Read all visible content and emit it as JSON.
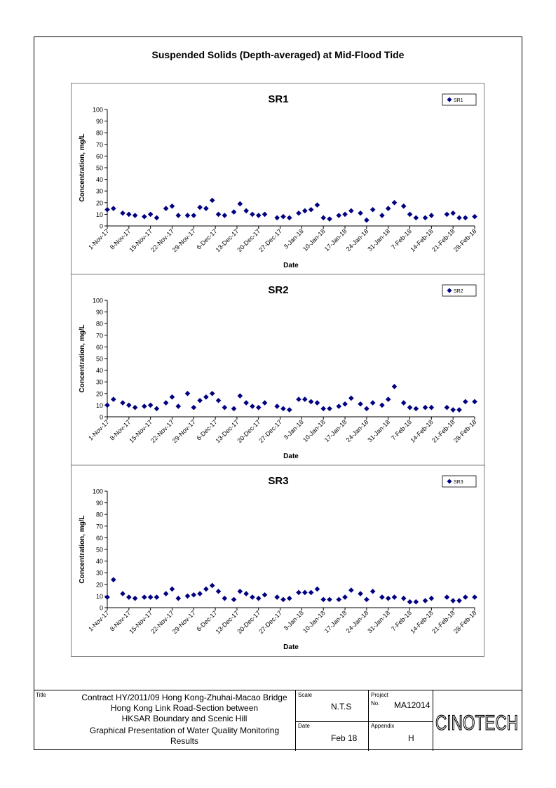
{
  "page": {
    "title": "Suspended Solids (Depth-averaged) at Mid-Flood Tide"
  },
  "chart_common": {
    "x_tick_labels": [
      "1-Nov-17",
      "8-Nov-17",
      "15-Nov-17",
      "22-Nov-17",
      "29-Nov-17",
      "6-Dec-17",
      "13-Dec-17",
      "20-Dec-17",
      "27-Dec-17",
      "3-Jan-18",
      "10-Jan-18",
      "17-Jan-18",
      "24-Jan-18",
      "31-Jan-18",
      "7-Feb-18",
      "14-Feb-18",
      "21-Feb-18",
      "28-Feb-18"
    ],
    "y_tick_labels": [
      "0",
      "10",
      "20",
      "30",
      "40",
      "50",
      "60",
      "70",
      "80",
      "90",
      "100"
    ],
    "marker_color": "#000080"
  },
  "chart_data": [
    {
      "type": "scatter",
      "title": "SR1",
      "xlabel": "Date",
      "ylabel": "Concentration, mg/L",
      "xlim": [
        "1-Nov-17",
        "28-Feb-18"
      ],
      "ylim": [
        0,
        100
      ],
      "legend": "top-right",
      "grid": false,
      "series": [
        {
          "name": "SR1",
          "x": [
            "1-Nov-17",
            "3-Nov-17",
            "6-Nov-17",
            "8-Nov-17",
            "10-Nov-17",
            "13-Nov-17",
            "15-Nov-17",
            "17-Nov-17",
            "20-Nov-17",
            "22-Nov-17",
            "24-Nov-17",
            "27-Nov-17",
            "29-Nov-17",
            "1-Dec-17",
            "3-Dec-17",
            "5-Dec-17",
            "7-Dec-17",
            "9-Dec-17",
            "12-Dec-17",
            "14-Dec-17",
            "16-Dec-17",
            "18-Dec-17",
            "20-Dec-17",
            "22-Dec-17",
            "26-Dec-17",
            "28-Dec-17",
            "30-Dec-17",
            "2-Jan-18",
            "4-Jan-18",
            "6-Jan-18",
            "8-Jan-18",
            "10-Jan-18",
            "12-Jan-18",
            "15-Jan-18",
            "17-Jan-18",
            "19-Jan-18",
            "22-Jan-18",
            "24-Jan-18",
            "26-Jan-18",
            "29-Jan-18",
            "31-Jan-18",
            "2-Feb-18",
            "5-Feb-18",
            "7-Feb-18",
            "9-Feb-18",
            "12-Feb-18",
            "14-Feb-18",
            "19-Feb-18",
            "21-Feb-18",
            "23-Feb-18",
            "25-Feb-18",
            "28-Feb-18"
          ],
          "y": [
            14,
            15,
            11,
            10,
            9,
            8,
            10,
            7,
            15,
            17,
            9,
            9,
            9,
            16,
            15,
            22,
            10,
            9,
            12,
            19,
            13,
            10,
            9,
            10,
            7,
            8,
            7,
            11,
            13,
            14,
            18,
            7,
            6,
            9,
            10,
            13,
            11,
            5,
            14,
            9,
            15,
            20,
            17,
            10,
            7,
            7,
            9,
            10,
            11,
            7,
            7,
            8
          ]
        }
      ]
    },
    {
      "type": "scatter",
      "title": "SR2",
      "xlabel": "Date",
      "ylabel": "Concentration, mg/L",
      "xlim": [
        "1-Nov-17",
        "28-Feb-18"
      ],
      "ylim": [
        0,
        100
      ],
      "legend": "top-right",
      "grid": false,
      "series": [
        {
          "name": "SR2",
          "x": [
            "1-Nov-17",
            "3-Nov-17",
            "6-Nov-17",
            "8-Nov-17",
            "10-Nov-17",
            "13-Nov-17",
            "15-Nov-17",
            "17-Nov-17",
            "20-Nov-17",
            "22-Nov-17",
            "24-Nov-17",
            "27-Nov-17",
            "29-Nov-17",
            "1-Dec-17",
            "3-Dec-17",
            "5-Dec-17",
            "7-Dec-17",
            "9-Dec-17",
            "12-Dec-17",
            "14-Dec-17",
            "16-Dec-17",
            "18-Dec-17",
            "20-Dec-17",
            "22-Dec-17",
            "26-Dec-17",
            "28-Dec-17",
            "30-Dec-17",
            "2-Jan-18",
            "4-Jan-18",
            "6-Jan-18",
            "8-Jan-18",
            "10-Jan-18",
            "12-Jan-18",
            "15-Jan-18",
            "17-Jan-18",
            "19-Jan-18",
            "22-Jan-18",
            "24-Jan-18",
            "26-Jan-18",
            "29-Jan-18",
            "31-Jan-18",
            "2-Feb-18",
            "5-Feb-18",
            "7-Feb-18",
            "9-Feb-18",
            "12-Feb-18",
            "14-Feb-18",
            "19-Feb-18",
            "21-Feb-18",
            "23-Feb-18",
            "25-Feb-18",
            "28-Feb-18"
          ],
          "y": [
            10,
            15,
            12,
            10,
            8,
            9,
            10,
            7,
            12,
            17,
            9,
            20,
            8,
            14,
            17,
            20,
            14,
            8,
            7,
            18,
            12,
            9,
            8,
            12,
            9,
            7,
            6,
            15,
            15,
            13,
            12,
            7,
            7,
            9,
            11,
            16,
            11,
            7,
            12,
            10,
            15,
            26,
            12,
            8,
            7,
            8,
            8,
            8,
            6,
            6,
            13,
            13
          ]
        }
      ]
    },
    {
      "type": "scatter",
      "title": "SR3",
      "xlabel": "Date",
      "ylabel": "Concentration, mg/L",
      "xlim": [
        "1-Nov-17",
        "28-Feb-18"
      ],
      "ylim": [
        0,
        100
      ],
      "legend": "top-right",
      "grid": false,
      "series": [
        {
          "name": "SR3",
          "x": [
            "1-Nov-17",
            "3-Nov-17",
            "6-Nov-17",
            "8-Nov-17",
            "10-Nov-17",
            "13-Nov-17",
            "15-Nov-17",
            "17-Nov-17",
            "20-Nov-17",
            "22-Nov-17",
            "24-Nov-17",
            "27-Nov-17",
            "29-Nov-17",
            "1-Dec-17",
            "3-Dec-17",
            "5-Dec-17",
            "7-Dec-17",
            "9-Dec-17",
            "12-Dec-17",
            "14-Dec-17",
            "16-Dec-17",
            "18-Dec-17",
            "20-Dec-17",
            "22-Dec-17",
            "26-Dec-17",
            "28-Dec-17",
            "30-Dec-17",
            "2-Jan-18",
            "4-Jan-18",
            "6-Jan-18",
            "8-Jan-18",
            "10-Jan-18",
            "12-Jan-18",
            "15-Jan-18",
            "17-Jan-18",
            "19-Jan-18",
            "22-Jan-18",
            "24-Jan-18",
            "26-Jan-18",
            "29-Jan-18",
            "31-Jan-18",
            "2-Feb-18",
            "5-Feb-18",
            "7-Feb-18",
            "9-Feb-18",
            "12-Feb-18",
            "14-Feb-18",
            "19-Feb-18",
            "21-Feb-18",
            "23-Feb-18",
            "25-Feb-18",
            "28-Feb-18"
          ],
          "y": [
            9,
            24,
            12,
            9,
            8,
            9,
            9,
            9,
            12,
            16,
            8,
            10,
            11,
            12,
            16,
            19,
            14,
            8,
            7,
            14,
            12,
            9,
            8,
            11,
            9,
            7,
            8,
            13,
            13,
            13,
            16,
            7,
            7,
            7,
            9,
            15,
            12,
            7,
            14,
            9,
            8,
            9,
            8,
            5,
            5,
            6,
            8,
            9,
            6,
            6,
            9,
            9
          ]
        }
      ]
    }
  ],
  "titleblock": {
    "title_caption": "Title",
    "contract_line1": "Contract HY/2011/09 Hong Kong-Zhuhai-Macao Bridge",
    "contract_line2": "Hong Kong Link Road-Section between",
    "contract_line3": "HKSAR Boundary and Scenic Hill",
    "subject_line1": "Graphical Presentation of Water Quality Monitoring",
    "subject_line2": "Results",
    "scale_caption": "Scale",
    "scale_value": "N.T.S",
    "date_caption": "Date",
    "date_value": "Feb 18",
    "project_caption": "Project",
    "project_no_caption": "No.",
    "project_no_value": "MA12014",
    "appendix_caption": "Appendix",
    "appendix_value": "H",
    "logo_text": "CINOTECH"
  }
}
